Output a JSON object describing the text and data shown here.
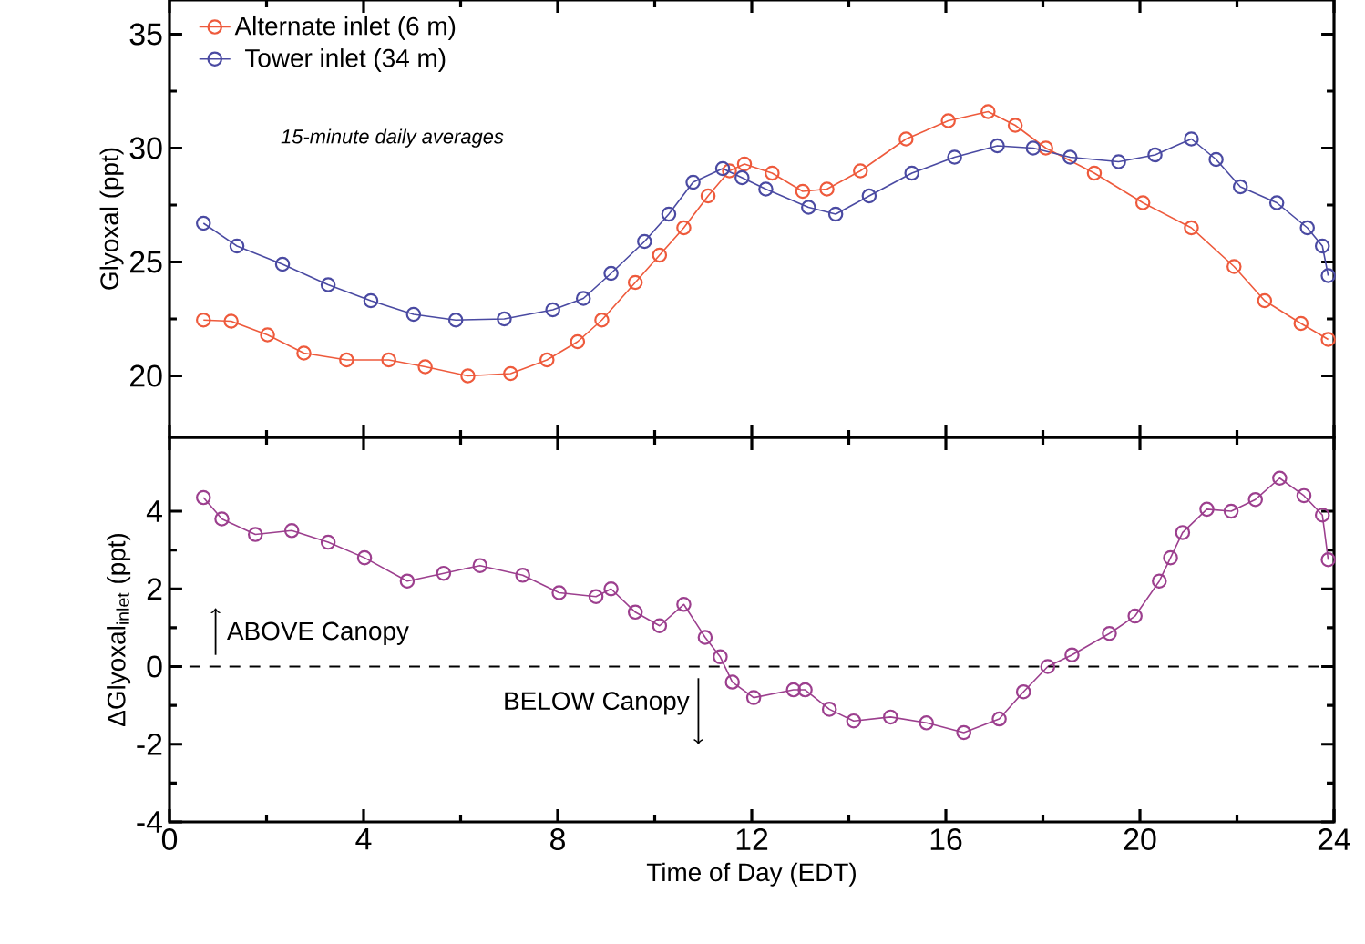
{
  "chart_data": [
    {
      "type": "line",
      "ylabel": "Glyoxal (ppt)",
      "xlim": [
        0,
        24
      ],
      "xticks": [
        0,
        4,
        8,
        12,
        16,
        20,
        24
      ],
      "ylim": [
        17.3,
        36.5
      ],
      "yticks": [
        20,
        25,
        30,
        35
      ],
      "tick_labels": "y",
      "marker": "circle",
      "legend": "top left",
      "annotations": [
        "15-minute daily averages"
      ],
      "series": [
        {
          "name": "Alternate inlet (6 m)",
          "color": "#ee5a3c",
          "x": [
            0.7,
            1.27,
            2.02,
            2.77,
            3.65,
            4.52,
            5.27,
            6.15,
            7.03,
            7.78,
            8.41,
            8.91,
            9.6,
            10.1,
            10.6,
            11.1,
            11.54,
            11.85,
            12.42,
            13.05,
            13.55,
            14.24,
            15.18,
            16.05,
            16.87,
            17.43,
            18.06,
            19.06,
            20.06,
            21.06,
            21.94,
            22.57,
            23.32,
            23.88
          ],
          "values": [
            22.45,
            22.4,
            21.8,
            21.0,
            20.7,
            20.7,
            20.4,
            20.0,
            20.1,
            20.7,
            21.5,
            22.45,
            24.1,
            25.3,
            26.5,
            27.9,
            29.0,
            29.3,
            28.9,
            28.1,
            28.2,
            29.0,
            30.4,
            31.2,
            31.6,
            31.0,
            30.0,
            28.9,
            27.6,
            26.5,
            24.8,
            23.3,
            22.3,
            21.6
          ]
        },
        {
          "name": "Tower inlet (34 m)",
          "color": "#4a4aa2",
          "x": [
            0.7,
            1.39,
            2.33,
            3.27,
            4.15,
            5.03,
            5.9,
            6.9,
            7.9,
            8.53,
            9.1,
            9.79,
            10.29,
            10.79,
            11.4,
            11.8,
            12.29,
            13.17,
            13.73,
            14.42,
            15.3,
            16.18,
            17.06,
            17.8,
            18.56,
            19.56,
            20.31,
            21.06,
            21.57,
            22.07,
            22.82,
            23.45,
            23.76,
            23.88
          ],
          "values": [
            26.7,
            25.7,
            24.9,
            24.0,
            23.3,
            22.7,
            22.45,
            22.5,
            22.9,
            23.4,
            24.5,
            25.9,
            27.1,
            28.5,
            29.1,
            28.7,
            28.2,
            27.4,
            27.1,
            27.9,
            28.9,
            29.6,
            30.1,
            30.0,
            29.6,
            29.4,
            29.7,
            30.4,
            29.5,
            28.3,
            27.6,
            26.5,
            25.7,
            24.4
          ]
        }
      ]
    },
    {
      "type": "line",
      "xlabel": "Time of Day (EDT)",
      "ylabel": "ΔGlyoxal$_{inlet}$ (ppt)",
      "xlim": [
        0,
        24
      ],
      "xticks": [
        0,
        4,
        8,
        12,
        16,
        20,
        24
      ],
      "ylim": [
        -4,
        5.9
      ],
      "yticks": [
        -4,
        -2,
        0,
        2,
        4
      ],
      "marker": "circle",
      "annotations": [
        "ABOVE Canopy",
        "BELOW Canopy"
      ],
      "ref_lines": [
        {
          "axis": "y",
          "value": 0,
          "line_style": "dashed",
          "color": "#000000"
        }
      ],
      "series": [
        {
          "color": "#9c3f8e",
          "x": [
            0.7,
            1.08,
            1.77,
            2.52,
            3.27,
            4.02,
            4.9,
            5.65,
            6.4,
            7.28,
            8.03,
            8.79,
            9.1,
            9.6,
            10.1,
            10.6,
            11.04,
            11.35,
            11.6,
            12.04,
            12.86,
            13.1,
            13.6,
            14.1,
            14.86,
            15.6,
            16.37,
            17.1,
            17.6,
            18.1,
            18.6,
            19.37,
            19.9,
            20.4,
            20.63,
            20.88,
            21.38,
            21.88,
            22.38,
            22.88,
            23.38,
            23.76,
            23.88
          ],
          "values": [
            4.35,
            3.8,
            3.4,
            3.5,
            3.2,
            2.8,
            2.2,
            2.4,
            2.6,
            2.35,
            1.9,
            1.8,
            2.0,
            1.4,
            1.05,
            1.6,
            0.75,
            0.25,
            -0.4,
            -0.8,
            -0.6,
            -0.6,
            -1.1,
            -1.4,
            -1.3,
            -1.45,
            -1.7,
            -1.35,
            -0.65,
            0.0,
            0.3,
            0.85,
            1.3,
            2.2,
            2.8,
            3.45,
            4.05,
            4.0,
            4.3,
            4.85,
            4.4,
            3.9,
            2.75
          ]
        }
      ]
    }
  ]
}
